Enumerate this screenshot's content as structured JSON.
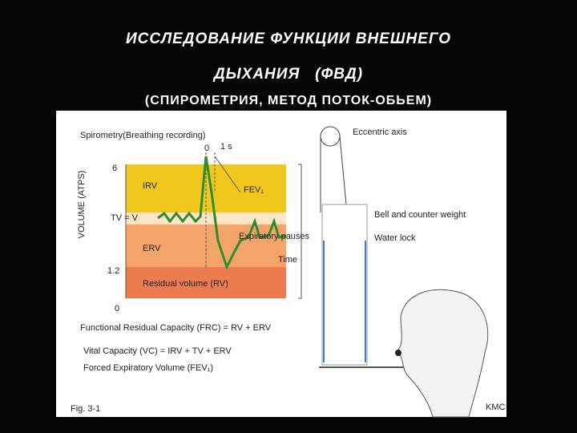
{
  "slide": {
    "title_line1": "ИССЛЕДОВАНИЕ ФУНКЦИИ ВНЕШНЕГО",
    "title_line2": "ДЫХАНИЯ   (ФВД)",
    "subtitle": "(СПИРОМЕТРИЯ, МЕТОД ПОТОК-ОБЬЕМ)"
  },
  "figure": {
    "title": "Spirometry(Breathing recording)",
    "time_zero": "0",
    "time_unit": "1 s",
    "y_axis_label": "VOLUME (ATPS)",
    "y_top": "6",
    "y_mid": "1.2",
    "y_bottom": "0",
    "zones": {
      "irv": "IRV",
      "fev": "FEV₁",
      "tv": "TV = V",
      "erv": "ERV",
      "pauses": "Expiratory pauses",
      "time": "Time",
      "rv": "Residual volume (RV)"
    },
    "apparatus": {
      "axis": "Eccentric axis",
      "bell": "Bell and counter weight",
      "lock": "Water lock"
    },
    "definitions": [
      "Functional Residual Capacity (FRC) = RV + ERV",
      "Vital Capacity (VC) = IRV + TV + ERV",
      "Forced Expiratory Volume (FEV₁)"
    ],
    "caption": "Fig. 3-1",
    "credit": "KMC"
  }
}
